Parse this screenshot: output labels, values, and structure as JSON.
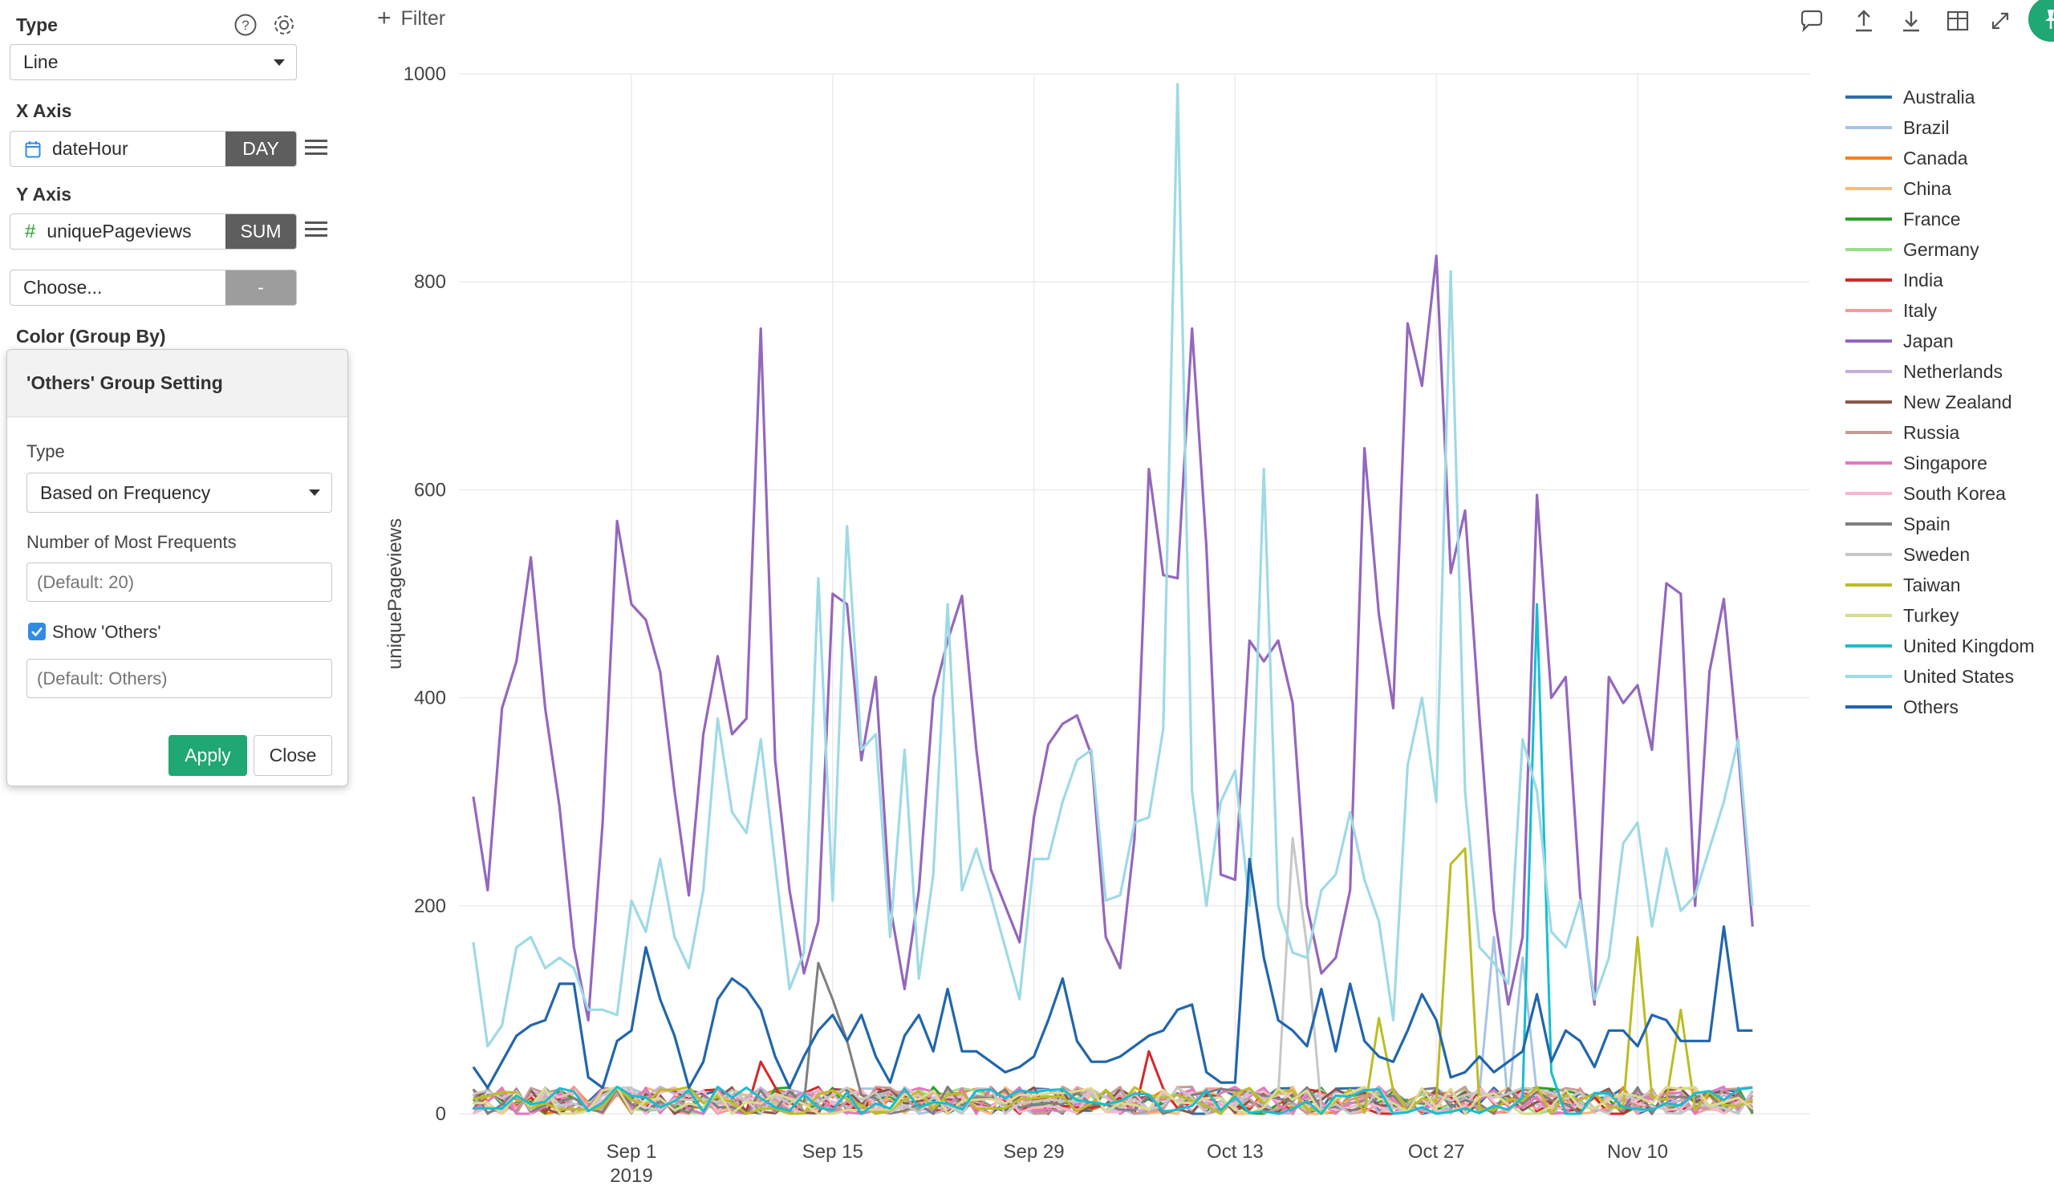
{
  "left_panel": {
    "type_label": "Type",
    "type_value": "Line",
    "x_axis_label": "X Axis",
    "x_field": "dateHour",
    "x_agg": "DAY",
    "y_axis_label": "Y Axis",
    "y_field": "uniquePageviews",
    "y_agg": "SUM",
    "extra_choose": "Choose...",
    "extra_agg": "-",
    "color_label": "Color (Group By)",
    "x_field_icon": "calendar-icon",
    "y_field_icon": "hash-icon"
  },
  "popup": {
    "title": "'Others' Group Setting",
    "type_label": "Type",
    "type_value": "Based on Frequency",
    "freq_label": "Number of Most Frequents",
    "freq_placeholder": "(Default: 20)",
    "show_others_label": "Show 'Others'",
    "show_others_checked": true,
    "others_placeholder": "(Default: Others)",
    "apply": "Apply",
    "close": "Close"
  },
  "toolbar": {
    "filter_label": "Filter",
    "icons": [
      "comment-icon",
      "upload-icon",
      "download-icon",
      "table-icon",
      "expand-icon",
      "pin-icon"
    ]
  },
  "colors": {
    "accent_green": "#1fa774",
    "tag_gray": "#5e5e5e",
    "tag_light_gray": "#9d9d9d"
  },
  "chart_data": {
    "type": "line",
    "ylabel": "uniquePageviews",
    "xlabel": "",
    "ylim": [
      0,
      1000
    ],
    "yticks": [
      0,
      200,
      400,
      600,
      800,
      1000
    ],
    "xlim": [
      "2019-08-20",
      "2019-11-22"
    ],
    "xtick_labels": [
      "Sep 1",
      "Sep 15",
      "Sep 29",
      "Oct 13",
      "Oct 27",
      "Nov 10"
    ],
    "xtick_sublabel": "2019",
    "grid": true,
    "legend_position": "right",
    "series": [
      {
        "name": "Australia",
        "color": "#2e6ea6"
      },
      {
        "name": "Brazil",
        "color": "#a8c4e5"
      },
      {
        "name": "Canada",
        "color": "#f5801f"
      },
      {
        "name": "China",
        "color": "#fbbb79"
      },
      {
        "name": "France",
        "color": "#2ca02c"
      },
      {
        "name": "Germany",
        "color": "#98df8a"
      },
      {
        "name": "India",
        "color": "#d62728"
      },
      {
        "name": "Italy",
        "color": "#f7999a"
      },
      {
        "name": "Japan",
        "color": "#9467bd",
        "values": [
          305,
          215,
          390,
          435,
          535,
          390,
          295,
          160,
          90,
          280,
          570,
          490,
          475,
          425,
          310,
          210,
          365,
          440,
          365,
          380,
          755,
          340,
          215,
          135,
          185,
          500,
          490,
          340,
          420,
          200,
          120,
          215,
          400,
          455,
          498,
          350,
          235,
          200,
          165,
          285,
          355,
          375,
          383,
          345,
          170,
          140,
          265,
          620,
          518,
          515,
          755,
          545,
          230,
          225,
          455,
          435,
          455,
          395,
          200,
          135,
          150,
          215,
          640,
          480,
          390,
          760,
          700,
          825,
          520,
          580,
          380,
          195,
          105,
          170,
          595,
          400,
          420,
          210,
          105,
          420,
          395,
          412,
          350,
          510,
          500,
          200,
          425,
          495,
          350,
          180
        ]
      },
      {
        "name": "Netherlands",
        "color": "#c5b0d5"
      },
      {
        "name": "New Zealand",
        "color": "#8c564b"
      },
      {
        "name": "Russia",
        "color": "#c49c94"
      },
      {
        "name": "Singapore",
        "color": "#e377c2"
      },
      {
        "name": "South Korea",
        "color": "#f7b6d2"
      },
      {
        "name": "Spain",
        "color": "#7f7f7f"
      },
      {
        "name": "Sweden",
        "color": "#c7c7c7"
      },
      {
        "name": "Taiwan",
        "color": "#bcbd22"
      },
      {
        "name": "Turkey",
        "color": "#dbdb8d"
      },
      {
        "name": "United Kingdom",
        "color": "#17becf"
      },
      {
        "name": "United States",
        "color": "#9edae5",
        "values": [
          165,
          65,
          85,
          160,
          170,
          140,
          150,
          140,
          100,
          100,
          95,
          205,
          175,
          245,
          170,
          140,
          215,
          380,
          290,
          270,
          360,
          240,
          120,
          155,
          515,
          205,
          565,
          350,
          365,
          170,
          350,
          130,
          230,
          490,
          215,
          255,
          210,
          160,
          110,
          245,
          245,
          300,
          340,
          350,
          205,
          210,
          280,
          285,
          370,
          990,
          310,
          200,
          300,
          330,
          200,
          620,
          200,
          155,
          150,
          215,
          230,
          290,
          225,
          185,
          90,
          335,
          400,
          300,
          810,
          310,
          160,
          145,
          125,
          360,
          310,
          175,
          160,
          205,
          110,
          150,
          260,
          280,
          180,
          255,
          195,
          210,
          255,
          300,
          360,
          200
        ]
      },
      {
        "name": "Others",
        "color": "#2166ac",
        "values": [
          45,
          25,
          50,
          75,
          85,
          90,
          125,
          125,
          35,
          25,
          70,
          80,
          160,
          110,
          75,
          25,
          50,
          110,
          130,
          120,
          100,
          55,
          25,
          55,
          80,
          95,
          70,
          95,
          55,
          30,
          75,
          95,
          60,
          120,
          60,
          60,
          50,
          40,
          45,
          55,
          90,
          130,
          70,
          50,
          50,
          55,
          65,
          75,
          80,
          100,
          105,
          40,
          30,
          30,
          245,
          150,
          90,
          80,
          65,
          120,
          60,
          125,
          70,
          55,
          50,
          80,
          115,
          90,
          35,
          40,
          55,
          40,
          50,
          60,
          115,
          50,
          80,
          70,
          45,
          80,
          80,
          65,
          95,
          90,
          70,
          70,
          70,
          180,
          80,
          80
        ]
      }
    ]
  }
}
